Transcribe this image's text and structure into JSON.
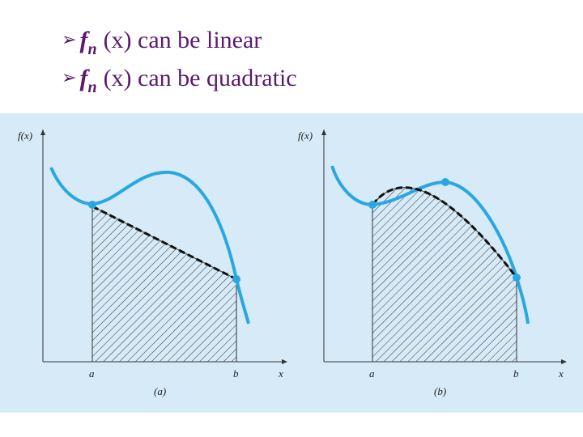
{
  "bullets": [
    {
      "func": "f",
      "sub": "n",
      "arg": "(x)",
      "text": "can be linear"
    },
    {
      "func": "f",
      "sub": "n",
      "arg": "(x)",
      "text": "can be quadratic"
    }
  ],
  "panels": [
    {
      "y_label": "f(x)",
      "x_label": "x",
      "a": "a",
      "b": "b",
      "caption": "(a)"
    },
    {
      "y_label": "f(x)",
      "x_label": "x",
      "a": "a",
      "b": "b",
      "caption": "(b)"
    }
  ]
}
